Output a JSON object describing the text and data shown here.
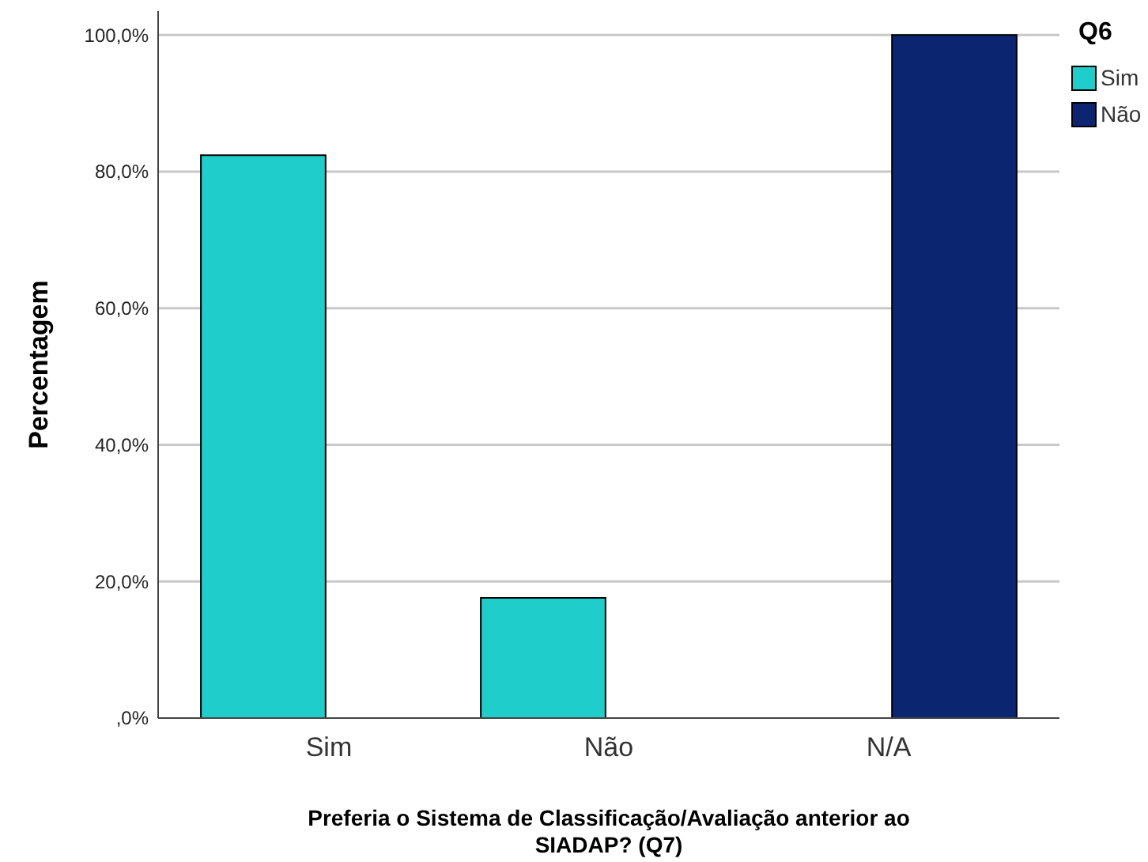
{
  "chart_data": {
    "type": "bar",
    "categories": [
      "Sim",
      "Não",
      "N/A"
    ],
    "series": [
      {
        "name": "Sim",
        "color": "#1fcecb",
        "values": [
          82.4,
          17.6,
          0
        ]
      },
      {
        "name": "Não",
        "color": "#0b2570",
        "values": [
          0,
          0,
          100
        ]
      }
    ],
    "xlabel": "Preferia o Sistema de Classificação/Avaliação anterior ao SIADAP? (Q7)",
    "ylabel": "Percentagem",
    "legend_title": "Q6",
    "legend": "top right",
    "ylim": [
      0,
      103.5
    ],
    "yticks": [
      {
        "value": 0,
        "label": ",0%"
      },
      {
        "value": 20,
        "label": "20,0%"
      },
      {
        "value": 40,
        "label": "40,0%"
      },
      {
        "value": 60,
        "label": "60,0%"
      },
      {
        "value": 80,
        "label": "80,0%"
      },
      {
        "value": 100,
        "label": "100,0%"
      }
    ],
    "grid": "y"
  }
}
